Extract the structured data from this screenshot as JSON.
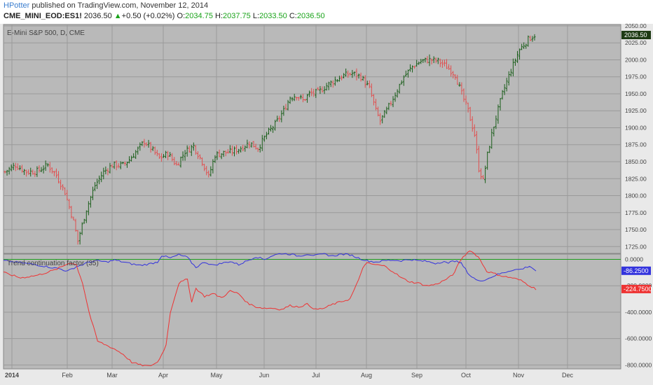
{
  "header": {
    "author": "HPotter",
    "published": "published on TradingView.com, November 12, 2014",
    "symbol": "CME_MINI_EOD:ES1!",
    "last": "2036.50",
    "change_arrow": "▲",
    "change": "+0.50 (+0.02%)",
    "open_label": "O:",
    "open": "2034.75",
    "high_label": "H:",
    "high": "2037.75",
    "low_label": "L:",
    "low": "2033.50",
    "close_label": "C:",
    "close": "2036.50"
  },
  "colors": {
    "up_bar": "#1a5e1a",
    "down_bar": "#e05050",
    "pane_bg": "#b9b9b9",
    "grid": "#9a9a9a",
    "positive_line": "#3333dd",
    "negative_line": "#ee3333",
    "zero_line": "#1e9e1e",
    "price_badge": "#1d3a14"
  },
  "chart_data": [
    {
      "type": "ohlc",
      "title": "E-Mini S&P 500, D, CME",
      "ylim": [
        1715,
        2052
      ],
      "yticks": [
        1725,
        1750,
        1775,
        1800,
        1825,
        1850,
        1875,
        1900,
        1925,
        1950,
        1975,
        2000,
        2025,
        2050
      ],
      "ytick_labels": [
        "1725.00",
        "1750.00",
        "1775.00",
        "1800.00",
        "1825.00",
        "1850.00",
        "1875.00",
        "1900.00",
        "1925.00",
        "1950.00",
        "1975.00",
        "2000.00",
        "2025.00",
        "2050.00"
      ],
      "x_labels": [
        "2014",
        "Feb",
        "Mar",
        "Apr",
        "May",
        "Jun",
        "Jul",
        "Aug",
        "Sep",
        "Oct",
        "Nov",
        "Dec"
      ],
      "last_price_label": "2036.50",
      "path_anchors": [
        [
          0,
          1835
        ],
        [
          5,
          1845
        ],
        [
          10,
          1835
        ],
        [
          15,
          1836
        ],
        [
          20,
          1845
        ],
        [
          24,
          1830
        ],
        [
          28,
          1805
        ],
        [
          32,
          1762
        ],
        [
          34,
          1733
        ],
        [
          38,
          1780
        ],
        [
          42,
          1815
        ],
        [
          46,
          1835
        ],
        [
          50,
          1845
        ],
        [
          55,
          1845
        ],
        [
          58,
          1853
        ],
        [
          62,
          1868
        ],
        [
          65,
          1880
        ],
        [
          68,
          1870
        ],
        [
          72,
          1855
        ],
        [
          76,
          1862
        ],
        [
          80,
          1845
        ],
        [
          84,
          1865
        ],
        [
          88,
          1873
        ],
        [
          92,
          1850
        ],
        [
          95,
          1828
        ],
        [
          98,
          1860
        ],
        [
          102,
          1863
        ],
        [
          106,
          1865
        ],
        [
          110,
          1870
        ],
        [
          114,
          1878
        ],
        [
          118,
          1870
        ],
        [
          122,
          1890
        ],
        [
          126,
          1905
        ],
        [
          130,
          1925
        ],
        [
          133,
          1945
        ],
        [
          136,
          1948
        ],
        [
          139,
          1940
        ],
        [
          142,
          1950
        ],
        [
          146,
          1952
        ],
        [
          150,
          1962
        ],
        [
          154,
          1970
        ],
        [
          158,
          1977
        ],
        [
          162,
          1980
        ],
        [
          166,
          1975
        ],
        [
          170,
          1958
        ],
        [
          173,
          1925
        ],
        [
          175,
          1910
        ],
        [
          178,
          1925
        ],
        [
          182,
          1950
        ],
        [
          186,
          1975
        ],
        [
          190,
          1990
        ],
        [
          194,
          1998
        ],
        [
          198,
          2000
        ],
        [
          202,
          1998
        ],
        [
          206,
          1990
        ],
        [
          210,
          1978
        ],
        [
          213,
          1950
        ],
        [
          216,
          1925
        ],
        [
          219,
          1890
        ],
        [
          221,
          1840
        ],
        [
          223,
          1822
        ],
        [
          225,
          1860
        ],
        [
          227,
          1890
        ],
        [
          229,
          1915
        ],
        [
          232,
          1950
        ],
        [
          236,
          1985
        ],
        [
          240,
          2015
        ],
        [
          244,
          2030
        ],
        [
          247,
          2036.5
        ]
      ],
      "bar_count": 248,
      "note_values": "bars are synthesized between the anchors; anchor = [bar index, approximate close]"
    },
    {
      "type": "line",
      "title": "Trend continuation factor (35)",
      "ylim": [
        -830,
        40
      ],
      "yticks": [
        0,
        -200,
        -400,
        -600,
        -800
      ],
      "ytick_labels": [
        "0.0000",
        "-200.0000",
        "-400.0000",
        "-600.0000",
        "-800.0000"
      ],
      "series": [
        {
          "color_key": "positive_line",
          "last_label": "-86.2500",
          "anchors": [
            [
              0,
              -10
            ],
            [
              8,
              -25
            ],
            [
              15,
              -40
            ],
            [
              22,
              -60
            ],
            [
              26,
              -70
            ],
            [
              30,
              -90
            ],
            [
              34,
              -55
            ],
            [
              37,
              -40
            ],
            [
              40,
              -20
            ],
            [
              44,
              -10
            ],
            [
              48,
              -20
            ],
            [
              52,
              -5
            ],
            [
              56,
              -20
            ],
            [
              60,
              -35
            ],
            [
              64,
              -45
            ],
            [
              68,
              -35
            ],
            [
              72,
              -20
            ],
            [
              74,
              30
            ],
            [
              78,
              10
            ],
            [
              82,
              35
            ],
            [
              86,
              15
            ],
            [
              88,
              -25
            ],
            [
              90,
              -60
            ],
            [
              94,
              -20
            ],
            [
              98,
              -45
            ],
            [
              102,
              -30
            ],
            [
              106,
              -15
            ],
            [
              110,
              -40
            ],
            [
              114,
              -10
            ],
            [
              118,
              20
            ],
            [
              122,
              0
            ],
            [
              126,
              30
            ],
            [
              130,
              45
            ],
            [
              134,
              40
            ],
            [
              138,
              25
            ],
            [
              142,
              40
            ],
            [
              146,
              30
            ],
            [
              150,
              40
            ],
            [
              154,
              25
            ],
            [
              158,
              40
            ],
            [
              162,
              35
            ],
            [
              166,
              10
            ],
            [
              170,
              -10
            ],
            [
              174,
              -20
            ],
            [
              178,
              -10
            ],
            [
              182,
              -5
            ],
            [
              186,
              -10
            ],
            [
              190,
              0
            ],
            [
              194,
              -10
            ],
            [
              198,
              -15
            ],
            [
              202,
              -30
            ],
            [
              206,
              -15
            ],
            [
              208,
              -35
            ],
            [
              210,
              -5
            ],
            [
              214,
              -30
            ],
            [
              218,
              -120
            ],
            [
              222,
              -165
            ],
            [
              226,
              -150
            ],
            [
              230,
              -120
            ],
            [
              234,
              -100
            ],
            [
              238,
              -80
            ],
            [
              242,
              -75
            ],
            [
              246,
              -50
            ],
            [
              249,
              -86.25
            ]
          ]
        },
        {
          "color_key": "negative_line",
          "last_label": "-224.7500",
          "anchors": [
            [
              0,
              -100
            ],
            [
              4,
              -120
            ],
            [
              8,
              -140
            ],
            [
              12,
              -130
            ],
            [
              16,
              -120
            ],
            [
              20,
              -100
            ],
            [
              24,
              -80
            ],
            [
              28,
              -50
            ],
            [
              31,
              -25
            ],
            [
              34,
              -40
            ],
            [
              37,
              -180
            ],
            [
              40,
              -400
            ],
            [
              44,
              -620
            ],
            [
              48,
              -650
            ],
            [
              52,
              -680
            ],
            [
              56,
              -720
            ],
            [
              60,
              -780
            ],
            [
              64,
              -800
            ],
            [
              68,
              -810
            ],
            [
              72,
              -780
            ],
            [
              74,
              -720
            ],
            [
              76,
              -650
            ],
            [
              78,
              -400
            ],
            [
              82,
              -180
            ],
            [
              86,
              -150
            ],
            [
              88,
              -320
            ],
            [
              90,
              -220
            ],
            [
              94,
              -280
            ],
            [
              98,
              -260
            ],
            [
              102,
              -290
            ],
            [
              106,
              -240
            ],
            [
              110,
              -260
            ],
            [
              114,
              -330
            ],
            [
              118,
              -360
            ],
            [
              122,
              -370
            ],
            [
              126,
              -370
            ],
            [
              130,
              -380
            ],
            [
              134,
              -350
            ],
            [
              138,
              -360
            ],
            [
              142,
              -340
            ],
            [
              146,
              -380
            ],
            [
              150,
              -370
            ],
            [
              154,
              -340
            ],
            [
              158,
              -320
            ],
            [
              162,
              -300
            ],
            [
              166,
              -160
            ],
            [
              168,
              -60
            ],
            [
              170,
              -30
            ],
            [
              174,
              -40
            ],
            [
              178,
              -50
            ],
            [
              182,
              -90
            ],
            [
              186,
              -140
            ],
            [
              190,
              -170
            ],
            [
              194,
              -180
            ],
            [
              198,
              -200
            ],
            [
              202,
              -190
            ],
            [
              206,
              -160
            ],
            [
              210,
              -120
            ],
            [
              214,
              0
            ],
            [
              218,
              70
            ],
            [
              222,
              20
            ],
            [
              226,
              -90
            ],
            [
              230,
              -110
            ],
            [
              234,
              -130
            ],
            [
              238,
              -140
            ],
            [
              242,
              -160
            ],
            [
              245,
              -190
            ],
            [
              249,
              -224.75
            ]
          ]
        }
      ],
      "zero_line": 0
    }
  ]
}
